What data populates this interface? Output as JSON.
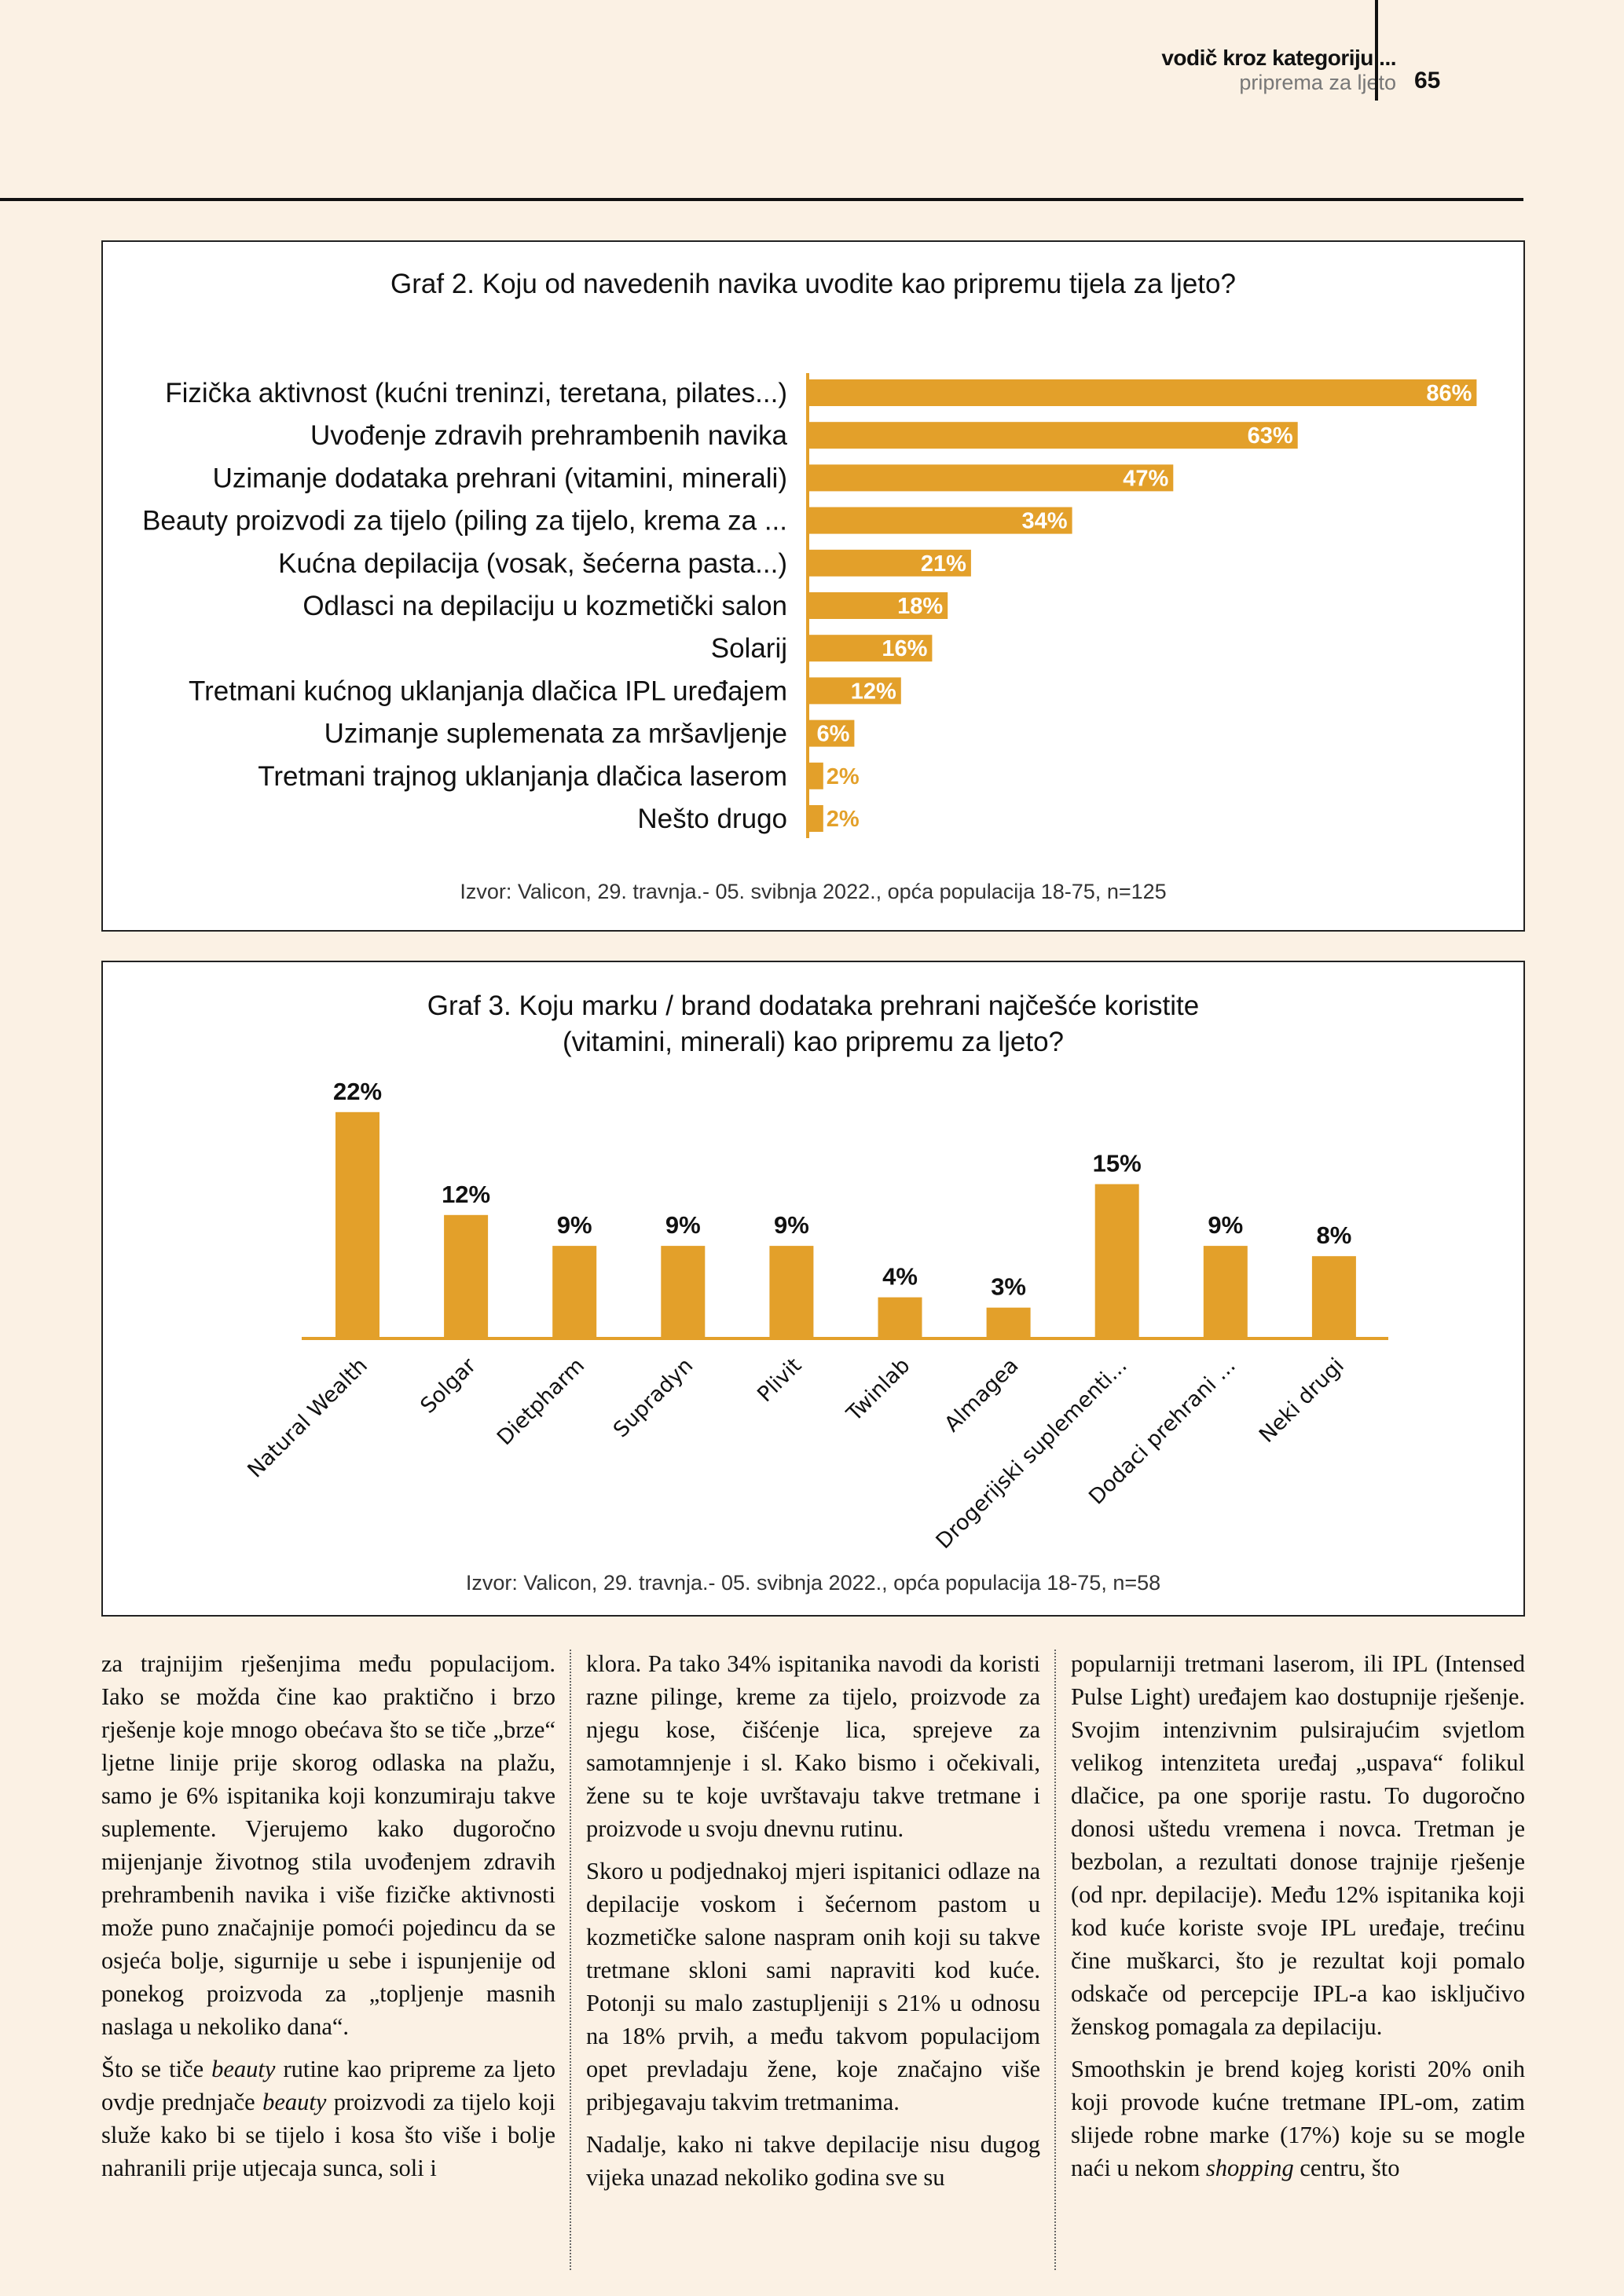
{
  "header": {
    "section": "vodič kroz kategoriju ...",
    "subsection": "priprema za ljeto",
    "page_number": "65"
  },
  "colors": {
    "bar": "#e3a02a",
    "background": "#fbf1e4"
  },
  "chart_data": [
    {
      "type": "bar",
      "orientation": "horizontal",
      "title": "Graf 2. Koju od navedenih navika uvodite kao pripremu tijela za ljeto?",
      "categories": [
        "Fizička aktivnost (kućni treninzi, teretana, pilates...)",
        "Uvođenje zdravih prehrambenih navika",
        "Uzimanje dodataka prehrani (vitamini, minerali)",
        "Beauty proizvodi za tijelo (piling za tijelo, krema za ...",
        "Kućna depilacija (vosak, šećerna pasta...)",
        "Odlasci na depilaciju u kozmetički salon",
        "Solarij",
        "Tretmani kućnog uklanjanja dlačica IPL uređajem",
        "Uzimanje suplemenata za mršavljenje",
        "Tretmani trajnog uklanjanja dlačica laserom",
        "Nešto drugo"
      ],
      "values": [
        86,
        63,
        47,
        34,
        21,
        18,
        16,
        12,
        6,
        2,
        2
      ],
      "labels": [
        "86%",
        "63%",
        "47%",
        "34%",
        "21%",
        "18%",
        "16%",
        "12%",
        "6%",
        "2%",
        "2%"
      ],
      "unit": "%",
      "grid": false,
      "source": "Izvor: Valicon, 29. travnja.- 05. svibnja 2022., opća populacija 18-75, n=125"
    },
    {
      "type": "bar",
      "orientation": "vertical",
      "title_lines": [
        "Graf 3. Koju marku / brand dodataka prehrani najčešće koristite",
        "(vitamini, minerali) kao pripremu za ljeto?"
      ],
      "categories": [
        "Natural Wealth",
        "Solgar",
        "Dietpharm",
        "Supradyn",
        "Plivit",
        "Twinlab",
        "Almagea",
        "Drogerijski suplementi...",
        "Dodaci prehrani ...",
        "Neki drugi"
      ],
      "values": [
        22,
        12,
        9,
        9,
        9,
        4,
        3,
        15,
        9,
        8
      ],
      "labels": [
        "22%",
        "12%",
        "9%",
        "9%",
        "9%",
        "4%",
        "3%",
        "15%",
        "9%",
        "8%"
      ],
      "unit": "%",
      "grid": false,
      "source": "Izvor: Valicon, 29. travnja.- 05. svibnja 2022., opća populacija 18-75, n=58"
    }
  ],
  "article": {
    "columns": [
      [
        [
          {
            "t": "za trajnijim rješenjima među populacijom. Iako se možda čine kao praktično i brzo rješenje koje mnogo obećava što se tiče „brze“ ljetne linije prije skorog odlaska na plažu, samo je 6% ispitanika koji kon­zumiraju takve suplemente. Vjerujemo kako dugoročno mijenjanje životnog stila uvođenjem zdravih prehrambenih navika i više fizičke aktivnosti može puno značaj­nije pomoći pojedincu da se osjeća bolje, sigurnije u sebe i ispunjenije od ponekog proizvoda za „topljenje masnih naslaga u nekoliko dana“."
          }
        ],
        [
          {
            "t": "Što se tiče "
          },
          {
            "t": "beauty",
            "i": true
          },
          {
            "t": " rutine kao pripreme za ljeto ovdje prednjače "
          },
          {
            "t": "beauty",
            "i": true
          },
          {
            "t": " proizvodi za ti­jelo koji služe kako bi se tijelo i kosa što više i bolje nahranili prije utjecaja sunca, soli i"
          }
        ]
      ],
      [
        [
          {
            "t": "klora. Pa tako 34% ispitanika navodi da ko­risti razne pilinge, kreme za tijelo, proizvo­de za njegu kose, čišćenje lica, sprejeve za samotamnjenje i sl. Kako bismo i očekivali, žene su te koje uvrštavaju takve tretmane i proizvode u svoju dnevnu rutinu."
          }
        ],
        [
          {
            "t": "Skoro u podjednakoj mjeri ispitanici odlaze na depilacije voskom i šećernom pastom u kozmetičke salone naspram onih koji su takve tretmane skloni sami napraviti kod kuće. Potonji su malo zastupljeniji s 21% u odnosu na 18% prvih, a među takvom popu­lacijom opet prevladaju žene, koje značajno više pribjegavaju takvim tretmanima."
          }
        ],
        [
          {
            "t": "Nadalje, kako ni takve depilacije nisu du­gog vijeka unazad nekoliko godina sve su"
          }
        ]
      ],
      [
        [
          {
            "t": "popularniji tretmani laserom, ili IPL (In­tensed Pulse Light) uređajem kao dostup­nije rješenje. Svojim intenzivnim pulsira­jućim svjetlom velikog intenziteta uređaj „uspava“ folikul dlačice, pa one sporije ra­stu. To dugoročno donosi uštedu vremena i novca. Tretman je bezbolan, a rezultati do­nose trajnije rješenje (od npr. depilacije). Među 12% ispitanika koji kod kuće koriste svoje IPL uređaje, trećinu čine muškarci, što je rezultat koji pomalo odskače od per­cepcije IPL-a kao isključivo ženskog poma­gala za depilaciju."
          }
        ],
        [
          {
            "t": "Smoothskin je brend kojeg koristi 20% onih koji provode kućne tretmane IPL-om, zatim slijede robne marke (17%) koje su se mogle naći u nekom "
          },
          {
            "t": "shopping",
            "i": true
          },
          {
            "t": " centru, što"
          }
        ]
      ]
    ]
  }
}
